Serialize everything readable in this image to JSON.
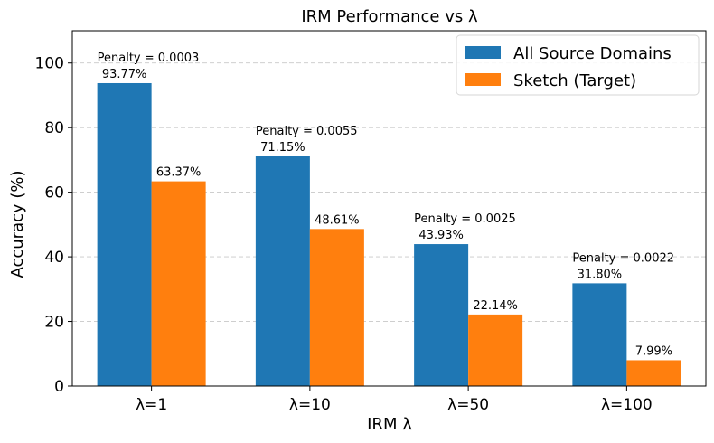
{
  "chart_data": {
    "type": "bar",
    "title": "IRM Performance vs λ",
    "xlabel": "IRM λ",
    "ylabel": "Accuracy (%)",
    "ylim": [
      0,
      110
    ],
    "yticks": [
      0,
      20,
      40,
      60,
      80,
      100
    ],
    "grid": "y-dashed",
    "legend_position": "top-right",
    "categories": [
      "λ=1",
      "λ=10",
      "λ=50",
      "λ=100"
    ],
    "series": [
      {
        "name": "All Source Domains",
        "color": "#1f77b4",
        "values": [
          93.77,
          71.15,
          43.93,
          31.8
        ],
        "labels": [
          "93.77%",
          "71.15%",
          "43.93%",
          "31.80%"
        ]
      },
      {
        "name": "Sketch (Target)",
        "color": "#ff7f0e",
        "values": [
          63.37,
          48.61,
          22.14,
          7.99
        ],
        "labels": [
          "63.37%",
          "48.61%",
          "22.14%",
          "7.99%"
        ]
      }
    ],
    "annotations": [
      "Penalty = 0.0003",
      "Penalty = 0.0055",
      "Penalty = 0.0025",
      "Penalty = 0.0022"
    ]
  }
}
